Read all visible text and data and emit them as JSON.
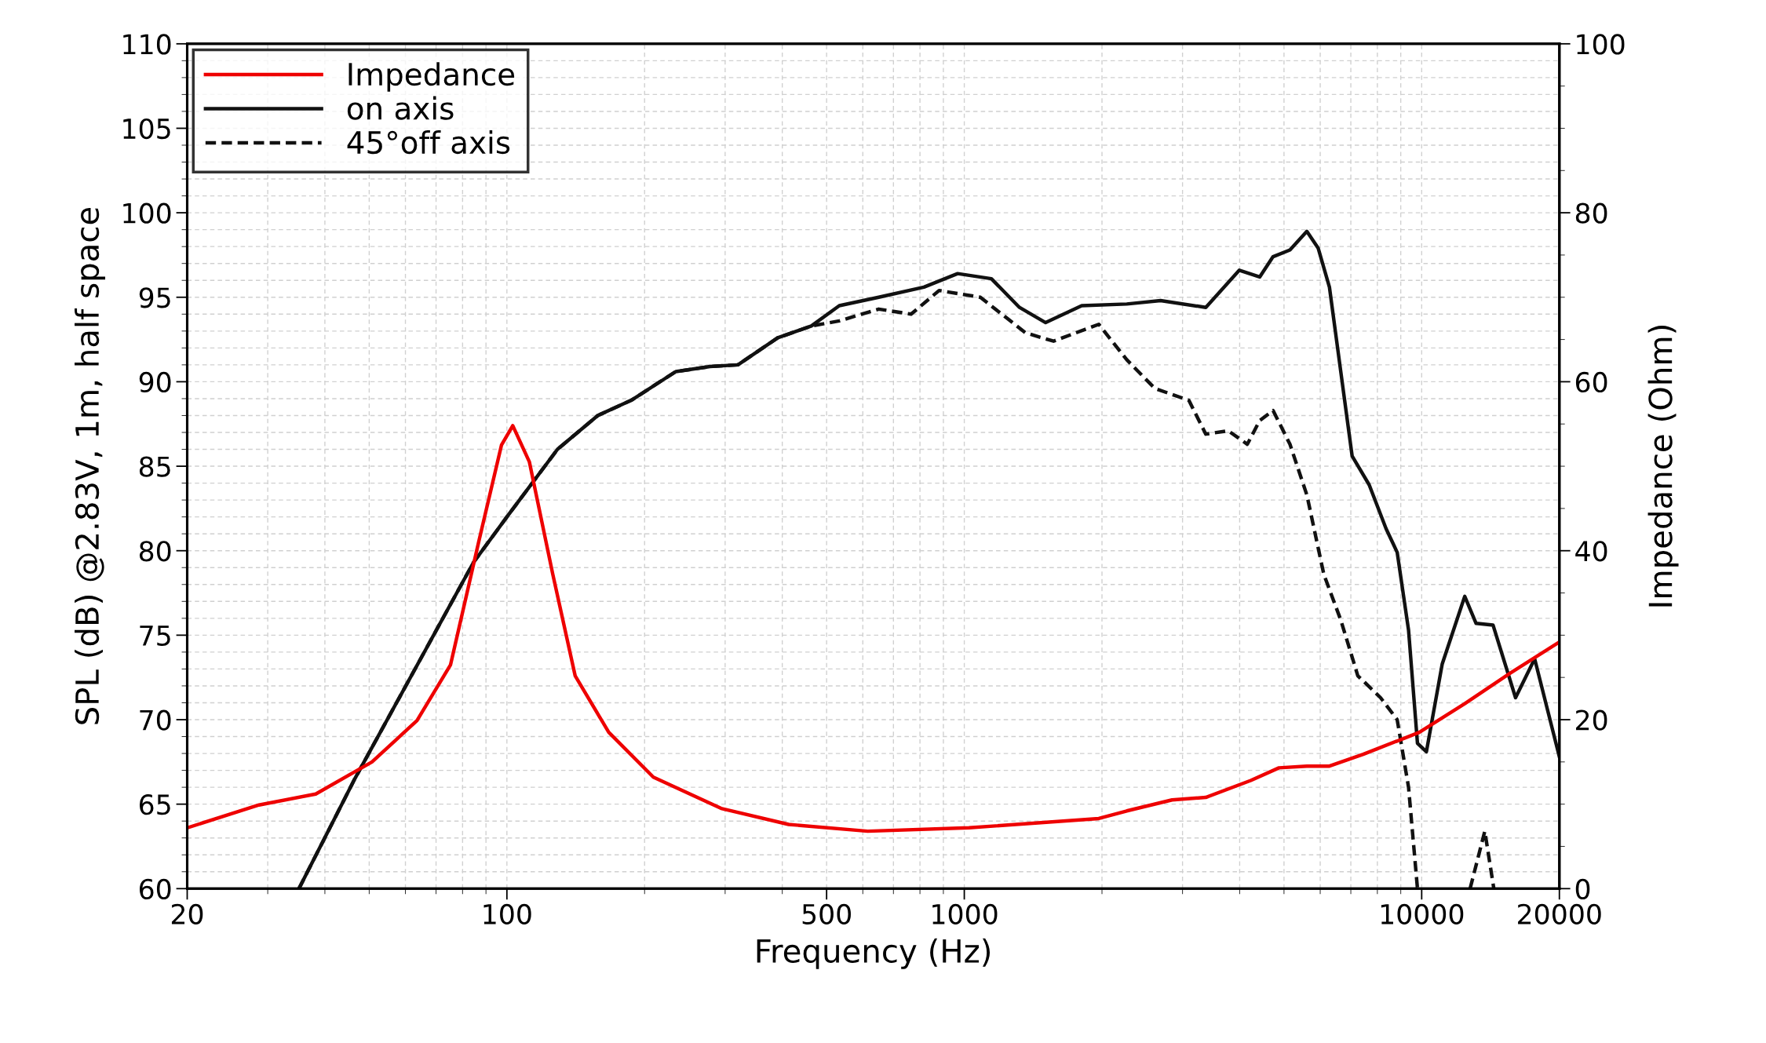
{
  "chart_data": {
    "type": "line",
    "xlabel": "Frequency (Hz)",
    "ylabel": "SPL (dB) @2.83V, 1m, half space",
    "y2label": "Impedance (Ohm)",
    "log": "x",
    "grid": true,
    "legend": "top left",
    "xlim": [
      20,
      20000
    ],
    "xticks": [
      20,
      100,
      500,
      1000,
      10000,
      20000
    ],
    "ylim": [
      60,
      110
    ],
    "yticks": [
      60,
      65,
      70,
      75,
      80,
      85,
      90,
      95,
      100,
      105,
      110
    ],
    "y2lim": [
      0,
      100
    ],
    "y2ticks": [
      0,
      20,
      40,
      60,
      80,
      100
    ],
    "series": [
      {
        "name": "Impedance",
        "color": "#ee0000",
        "axis": "y2",
        "line_style": "solid",
        "x": [
          20,
          28.7,
          38.2,
          50.7,
          63.6,
          75.3,
          86.9,
          97.3,
          103,
          112,
          126,
          141,
          167,
          209,
          294,
          413,
          615,
          1024,
          1968,
          2266,
          2846,
          3373,
          4229,
          4875,
          5610,
          6285,
          7450,
          9880,
          12420,
          15600,
          20000
        ],
        "values": [
          7.2,
          9.9,
          11.2,
          15,
          19.9,
          26.5,
          41.2,
          52.5,
          54.8,
          50.5,
          37.2,
          25.2,
          18.5,
          13.2,
          9.5,
          7.6,
          6.8,
          7.2,
          8.3,
          9.2,
          10.5,
          10.8,
          12.8,
          14.3,
          14.5,
          14.5,
          15.9,
          18.5,
          21.9,
          25.5,
          29.2
        ]
      },
      {
        "name": "on axis",
        "color": "#111111",
        "line_style": "solid",
        "x": [
          35.1,
          46.5,
          84.5,
          100,
          129,
          158,
          187,
          234,
          278,
          320,
          391,
          463,
          533,
          650,
          816,
          967,
          1146,
          1320,
          1506,
          1806,
          2266,
          2686,
          3373,
          3993,
          4424,
          4732,
          5152,
          5610,
          5940,
          6285,
          6654,
          7046,
          7677,
          8360,
          8840,
          9360,
          9790,
          10240,
          11090,
          12420,
          13150,
          14320,
          16040,
          17660,
          20000
        ],
        "values": [
          60,
          66.5,
          79.3,
          82,
          86,
          88,
          88.9,
          90.6,
          90.9,
          91,
          92.6,
          93.3,
          94.5,
          95,
          95.6,
          96.4,
          96.1,
          94.4,
          93.5,
          94.5,
          94.6,
          94.8,
          94.4,
          96.6,
          96.2,
          97.4,
          97.8,
          98.9,
          97.9,
          95.6,
          90.6,
          85.6,
          83.9,
          81.3,
          79.9,
          75.3,
          68.6,
          68.1,
          73.3,
          77.3,
          75.7,
          75.6,
          71.3,
          73.6,
          67.8
        ]
      },
      {
        "name": "45°off axis",
        "color": "#111111",
        "line_style": "dashed",
        "x": [
          35.1,
          46.5,
          84.5,
          100,
          129,
          158,
          187,
          234,
          278,
          320,
          391,
          463,
          533,
          650,
          765,
          881,
          1084,
          1360,
          1567,
          1968,
          2266,
          2611,
          3097,
          3373,
          3776,
          4157,
          4424,
          4732,
          5152,
          5610,
          6110,
          6654,
          7250,
          8130,
          8840,
          9360,
          9790,
          11000,
          12760,
          13740,
          14380
        ],
        "values": [
          60,
          66.5,
          79.3,
          82,
          86,
          88,
          88.9,
          90.6,
          90.9,
          91,
          92.6,
          93.3,
          93.6,
          94.3,
          94,
          95.4,
          95,
          92.9,
          92.4,
          93.4,
          91.3,
          89.6,
          88.9,
          86.9,
          87.1,
          86.3,
          87.7,
          88.3,
          86.3,
          83.3,
          78.6,
          75.9,
          72.6,
          71.3,
          70,
          66,
          60,
          null,
          60,
          63.4,
          60
        ]
      }
    ]
  }
}
